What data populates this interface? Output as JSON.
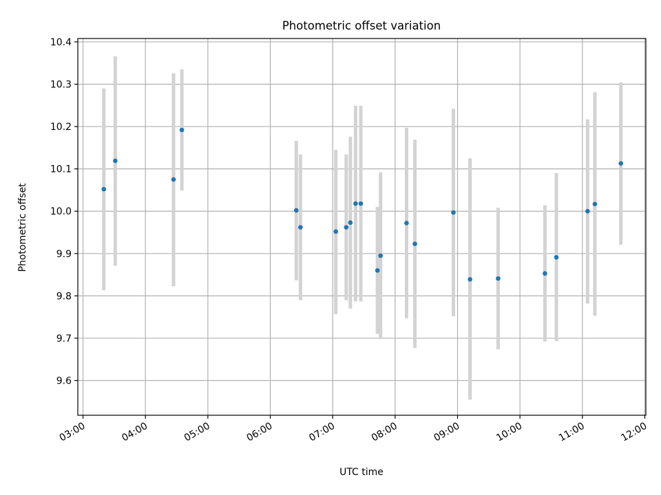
{
  "chart_data": {
    "type": "scatter",
    "title": "Photometric offset variation",
    "xlabel": "UTC time",
    "ylabel": "Photometric offset",
    "xlim": [
      "02:55",
      "12:01"
    ],
    "ylim": [
      9.518,
      10.408
    ],
    "x_ticks": [
      "03:00",
      "04:00",
      "05:00",
      "06:00",
      "07:00",
      "08:00",
      "09:00",
      "10:00",
      "11:00",
      "12:00"
    ],
    "y_ticks": [
      "9.6",
      "9.7",
      "9.8",
      "9.9",
      "10.0",
      "10.1",
      "10.2",
      "10.3",
      "10.4"
    ],
    "grid": true,
    "marker_color": "#1f77b4",
    "errorbar_color": "#d3d3d3",
    "series": [
      {
        "points": [
          {
            "x": "03:20",
            "y": 10.052,
            "ylow": 9.813,
            "yhigh": 10.29
          },
          {
            "x": "03:31",
            "y": 10.119,
            "ylow": 9.871,
            "yhigh": 10.366
          },
          {
            "x": "04:27",
            "y": 10.075,
            "ylow": 9.823,
            "yhigh": 10.326
          },
          {
            "x": "04:35",
            "y": 10.192,
            "ylow": 10.049,
            "yhigh": 10.335
          },
          {
            "x": "06:25",
            "y": 10.002,
            "ylow": 9.837,
            "yhigh": 10.166
          },
          {
            "x": "06:29",
            "y": 9.962,
            "ylow": 9.79,
            "yhigh": 10.134
          },
          {
            "x": "07:03",
            "y": 9.952,
            "ylow": 9.757,
            "yhigh": 10.145
          },
          {
            "x": "07:13",
            "y": 9.962,
            "ylow": 9.79,
            "yhigh": 10.134
          },
          {
            "x": "07:17",
            "y": 9.973,
            "ylow": 9.77,
            "yhigh": 10.176
          },
          {
            "x": "07:22",
            "y": 10.018,
            "ylow": 9.787,
            "yhigh": 10.249
          },
          {
            "x": "07:27",
            "y": 10.018,
            "ylow": 9.787,
            "yhigh": 10.249
          },
          {
            "x": "07:43",
            "y": 9.86,
            "ylow": 9.71,
            "yhigh": 10.01
          },
          {
            "x": "07:46",
            "y": 9.895,
            "ylow": 9.698,
            "yhigh": 10.092
          },
          {
            "x": "08:11",
            "y": 9.972,
            "ylow": 9.747,
            "yhigh": 10.197
          },
          {
            "x": "08:19",
            "y": 9.923,
            "ylow": 9.677,
            "yhigh": 10.169
          },
          {
            "x": "08:56",
            "y": 9.997,
            "ylow": 9.752,
            "yhigh": 10.242
          },
          {
            "x": "09:12",
            "y": 9.839,
            "ylow": 9.555,
            "yhigh": 10.125
          },
          {
            "x": "09:39",
            "y": 9.841,
            "ylow": 9.674,
            "yhigh": 10.008
          },
          {
            "x": "10:24",
            "y": 9.853,
            "ylow": 9.692,
            "yhigh": 10.014
          },
          {
            "x": "10:35",
            "y": 9.891,
            "ylow": 9.693,
            "yhigh": 10.09
          },
          {
            "x": "11:05",
            "y": 10.0,
            "ylow": 9.782,
            "yhigh": 10.217
          },
          {
            "x": "11:12",
            "y": 10.017,
            "ylow": 9.753,
            "yhigh": 10.281
          },
          {
            "x": "11:37",
            "y": 10.113,
            "ylow": 9.921,
            "yhigh": 10.304
          }
        ]
      }
    ]
  }
}
